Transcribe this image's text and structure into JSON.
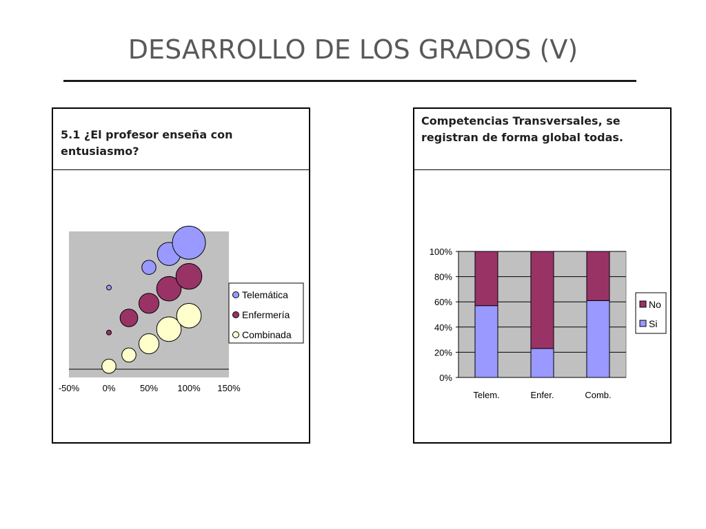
{
  "slide": {
    "title": "DESARROLLO DE LOS GRADOS (V)"
  },
  "left_panel": {
    "header": "5.1 ¿El profesor enseña con entusiasmo?"
  },
  "right_panel": {
    "header": "Competencias Transversales, se registran de forma global todas."
  },
  "colors": {
    "telematica": "#9999ff",
    "enfermeria": "#993366",
    "combinada": "#ffffcc",
    "si": "#9999ff",
    "no": "#993366",
    "plot_bg": "#c0c0c0"
  },
  "chart_data": [
    {
      "type": "bubble",
      "title": "",
      "xlabel": "",
      "ylabel": "",
      "xlim": [
        -50,
        150
      ],
      "ylim": [
        -100,
        1200
      ],
      "x_ticks": [
        "-50%",
        "0%",
        "50%",
        "100%",
        "150%"
      ],
      "legend_position": "right",
      "grid": false,
      "series": [
        {
          "name": "Telemática",
          "color_key": "telematica",
          "points": [
            {
              "x": 0,
              "y": 700,
              "size": 1
            },
            {
              "x": 50,
              "y": 880,
              "size": 9
            },
            {
              "x": 75,
              "y": 1000,
              "size": 24
            },
            {
              "x": 100,
              "y": 1100,
              "size": 49
            }
          ]
        },
        {
          "name": "Enfermería",
          "color_key": "enfermeria",
          "points": [
            {
              "x": 0,
              "y": 300,
              "size": 0.5
            },
            {
              "x": 25,
              "y": 430,
              "size": 14
            },
            {
              "x": 50,
              "y": 560,
              "size": 18
            },
            {
              "x": 75,
              "y": 690,
              "size": 27
            },
            {
              "x": 100,
              "y": 800,
              "size": 30
            }
          ]
        },
        {
          "name": "Combinada",
          "color_key": "combinada",
          "points": [
            {
              "x": 0,
              "y": 0,
              "size": 9
            },
            {
              "x": 25,
              "y": 100,
              "size": 9
            },
            {
              "x": 50,
              "y": 200,
              "size": 18
            },
            {
              "x": 75,
              "y": 330,
              "size": 27
            },
            {
              "x": 100,
              "y": 450,
              "size": 27
            }
          ]
        }
      ]
    },
    {
      "type": "bar",
      "stacked": "percent",
      "title": "",
      "xlabel": "",
      "ylabel": "",
      "ylim": [
        0,
        100
      ],
      "y_ticks": [
        "0%",
        "20%",
        "40%",
        "60%",
        "80%",
        "100%"
      ],
      "grid": true,
      "legend_position": "right",
      "categories": [
        "Telem.",
        "Enfer.",
        "Comb."
      ],
      "series": [
        {
          "name": "Si",
          "color_key": "si",
          "values": [
            57,
            23,
            61
          ]
        },
        {
          "name": "No",
          "color_key": "no",
          "values": [
            43,
            77,
            39
          ]
        }
      ]
    }
  ]
}
